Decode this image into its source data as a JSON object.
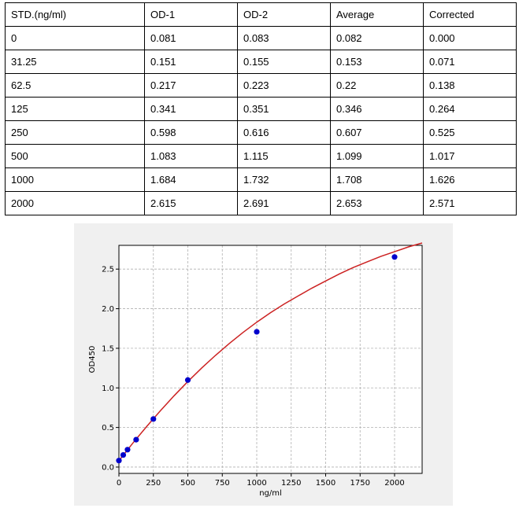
{
  "table": {
    "header": [
      "STD.(ng/ml)",
      "OD-1",
      "OD-2",
      "Average",
      "Corrected"
    ],
    "rows": [
      [
        "0",
        "0.081",
        "0.083",
        "0.082",
        "0.000"
      ],
      [
        "31.25",
        "0.151",
        "0.155",
        "0.153",
        "0.071"
      ],
      [
        "62.5",
        "0.217",
        "0.223",
        "0.22",
        "0.138"
      ],
      [
        "125",
        "0.341",
        "0.351",
        "0.346",
        "0.264"
      ],
      [
        "250",
        "0.598",
        "0.616",
        "0.607",
        "0.525"
      ],
      [
        "500",
        "1.083",
        "1.115",
        "1.099",
        "1.017"
      ],
      [
        "1000",
        "1.684",
        "1.732",
        "1.708",
        "1.626"
      ],
      [
        "2000",
        "2.615",
        "2.691",
        "2.653",
        "2.571"
      ]
    ]
  },
  "chart_data": {
    "type": "scatter",
    "title": "",
    "xlabel": "ng/ml",
    "ylabel": "OD450",
    "xlim": [
      0,
      2200
    ],
    "ylim": [
      -0.08,
      2.8
    ],
    "xticks": [
      0,
      250,
      500,
      750,
      1000,
      1250,
      1500,
      1750,
      2000
    ],
    "yticks": [
      0.0,
      0.5,
      1.0,
      1.5,
      2.0,
      2.5
    ],
    "xtick_labels": [
      "0",
      "250",
      "500",
      "750",
      "1000",
      "1250",
      "1500",
      "1750",
      "2000"
    ],
    "ytick_labels": [
      "0.0",
      "0.5",
      "1.0",
      "1.5",
      "2.0",
      "2.5"
    ],
    "grid": true,
    "series": [
      {
        "x": [
          0,
          31.25,
          62.5,
          125,
          250,
          500,
          1000,
          2000
        ],
        "y": [
          0.082,
          0.153,
          0.22,
          0.346,
          0.607,
          1.099,
          1.708,
          2.653
        ],
        "color": "#0000cc"
      }
    ],
    "fit_curve": {
      "color": "#cc2222",
      "x": [
        0,
        100,
        200,
        300,
        400,
        500,
        600,
        700,
        800,
        900,
        1000,
        1100,
        1200,
        1300,
        1400,
        1500,
        1600,
        1700,
        1800,
        1900,
        2000,
        2100,
        2200
      ],
      "y": [
        0.08,
        0.3,
        0.51,
        0.71,
        0.9,
        1.08,
        1.25,
        1.41,
        1.56,
        1.7,
        1.83,
        1.95,
        2.06,
        2.16,
        2.26,
        2.35,
        2.44,
        2.52,
        2.59,
        2.66,
        2.72,
        2.78,
        2.83
      ]
    }
  }
}
